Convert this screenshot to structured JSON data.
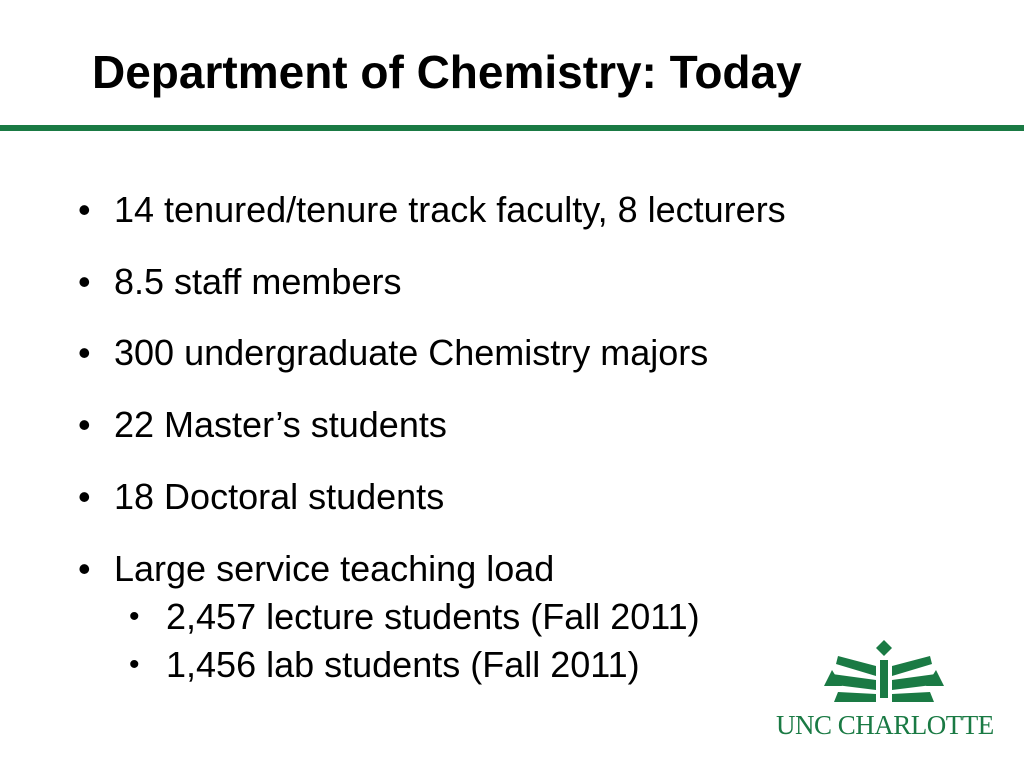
{
  "slide": {
    "title": "Department of Chemistry: Today",
    "accent_color": "#1a7a44",
    "bullets": [
      "14 tenured/tenure track faculty, 8 lecturers",
      "8.5 staff members",
      "300 undergraduate Chemistry majors",
      "22 Master’s students",
      "18 Doctoral students",
      "Large service teaching load"
    ],
    "sub_bullets": [
      "2,457 lecture students (Fall 2011)",
      "1,456 lab students (Fall 2011)"
    ],
    "bullet_glyph": "•"
  },
  "logo": {
    "text": "UNC CHARLOTTE",
    "icon": "unc-charlotte-crown-icon"
  }
}
